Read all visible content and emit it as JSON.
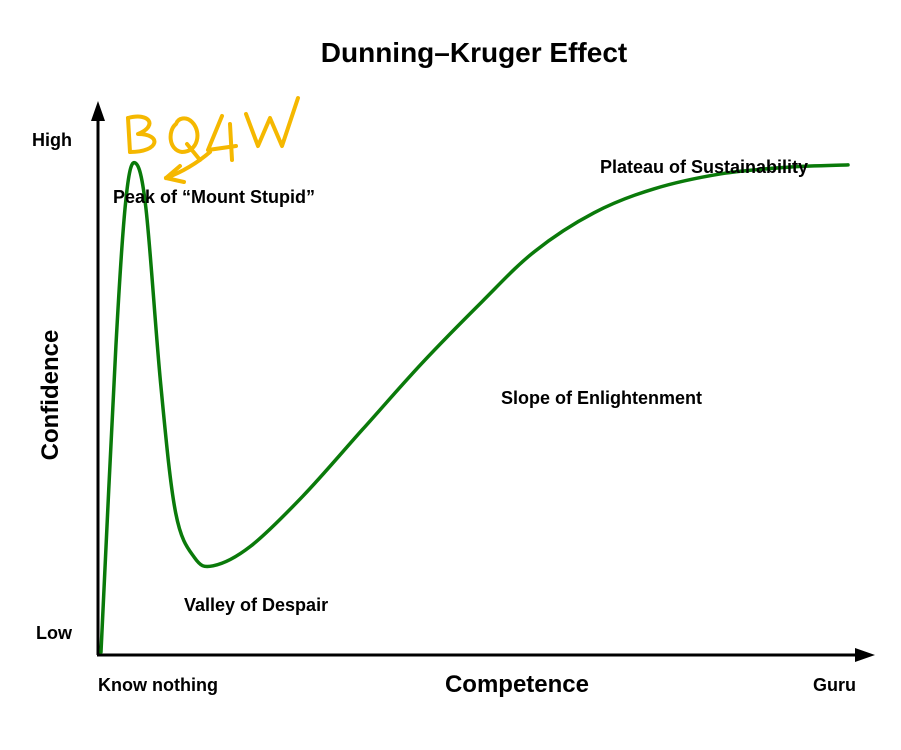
{
  "chart_data": {
    "type": "line",
    "title": "Dunning–Kruger Effect",
    "xlabel": "Competence",
    "ylabel": "Confidence",
    "x_tick_labels": [
      "Know nothing",
      "Guru"
    ],
    "y_tick_labels": [
      "Low",
      "High"
    ],
    "xlim": [
      0,
      1
    ],
    "ylim": [
      0,
      1
    ],
    "grid": false,
    "legend": "none",
    "series": [
      {
        "color": "#0a7a0a",
        "x": [
          0.0,
          0.02,
          0.033,
          0.045,
          0.06,
          0.08,
          0.1,
          0.125,
          0.15,
          0.2,
          0.27,
          0.35,
          0.43,
          0.51,
          0.58,
          0.66,
          0.74,
          0.83,
          0.92,
          1.0
        ],
        "y": [
          0.0,
          0.55,
          0.81,
          0.88,
          0.8,
          0.48,
          0.25,
          0.17,
          0.155,
          0.19,
          0.28,
          0.4,
          0.52,
          0.63,
          0.72,
          0.79,
          0.833,
          0.86,
          0.872,
          0.876
        ]
      }
    ],
    "annotations": [
      {
        "text": "Peak of “Mount Stupid”",
        "x": 0.045,
        "y": 0.88
      },
      {
        "text": "Valley of Despair",
        "x": 0.15,
        "y": 0.155
      },
      {
        "text": "Slope of Enlightenment",
        "x": 0.58,
        "y": 0.72
      },
      {
        "text": "Plateau of Sustainability",
        "x": 0.83,
        "y": 0.86
      }
    ],
    "handwritten_note": {
      "text": "BQ4W",
      "color": "#f5b800"
    }
  }
}
